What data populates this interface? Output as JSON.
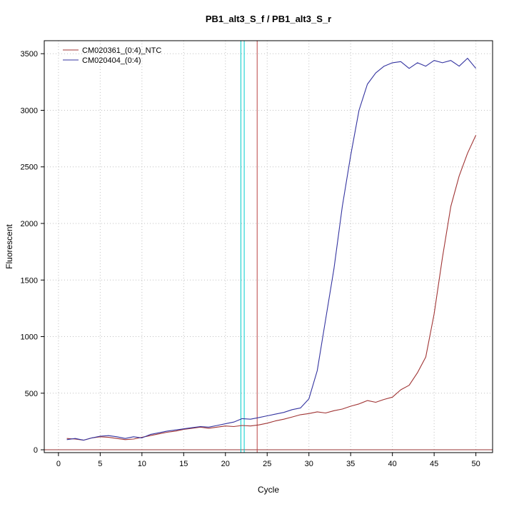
{
  "chart_data": {
    "type": "line",
    "title": "PB1_alt3_S_f / PB1_alt3_S_r",
    "xlabel": "Cycle",
    "ylabel": "Fluorescent",
    "xlim": [
      -1.7,
      52
    ],
    "ylim": [
      -25,
      3615
    ],
    "xticks": [
      0,
      5,
      10,
      15,
      20,
      25,
      30,
      35,
      40,
      45,
      50
    ],
    "yticks": [
      0,
      500,
      1000,
      1500,
      2000,
      2500,
      3000,
      3500
    ],
    "grid": "dotted",
    "grid_color": "#c0c0c0",
    "axis_color": "#000000",
    "legend_position": "top-left",
    "x": [
      1,
      2,
      3,
      4,
      5,
      6,
      7,
      8,
      9,
      10,
      11,
      12,
      13,
      14,
      15,
      16,
      17,
      18,
      19,
      20,
      21,
      22,
      23,
      24,
      25,
      26,
      27,
      28,
      29,
      30,
      31,
      32,
      33,
      34,
      35,
      36,
      37,
      38,
      39,
      40,
      41,
      42,
      43,
      44,
      45,
      46,
      47,
      48,
      49,
      50
    ],
    "series": [
      {
        "name": "CM020361_(0:4)_NTC",
        "color": "#a03434",
        "values": [
          100,
          95,
          85,
          105,
          115,
          110,
          100,
          90,
          95,
          110,
          125,
          140,
          155,
          165,
          180,
          190,
          200,
          190,
          200,
          210,
          205,
          215,
          210,
          220,
          235,
          255,
          270,
          290,
          310,
          320,
          335,
          325,
          345,
          360,
          385,
          405,
          435,
          420,
          445,
          465,
          530,
          570,
          680,
          820,
          1200,
          1700,
          2150,
          2420,
          2620,
          2780
        ]
      },
      {
        "name": "CM020404_(0:4)",
        "color": "#3434a0",
        "values": [
          90,
          100,
          85,
          105,
          120,
          125,
          115,
          100,
          115,
          105,
          135,
          150,
          165,
          175,
          185,
          195,
          205,
          200,
          215,
          230,
          245,
          275,
          270,
          285,
          300,
          315,
          330,
          355,
          370,
          450,
          700,
          1150,
          1600,
          2150,
          2600,
          3000,
          3230,
          3330,
          3390,
          3420,
          3430,
          3370,
          3420,
          3390,
          3440,
          3420,
          3440,
          3390,
          3460,
          3370
        ]
      }
    ],
    "vlines": [
      {
        "x": 21.85,
        "color": "#00cccc"
      },
      {
        "x": 22.25,
        "color": "#00cccc"
      },
      {
        "x": 23.8,
        "color": "#bb4444"
      }
    ],
    "hlines": [
      {
        "y": 0,
        "color": "#993333"
      }
    ]
  }
}
